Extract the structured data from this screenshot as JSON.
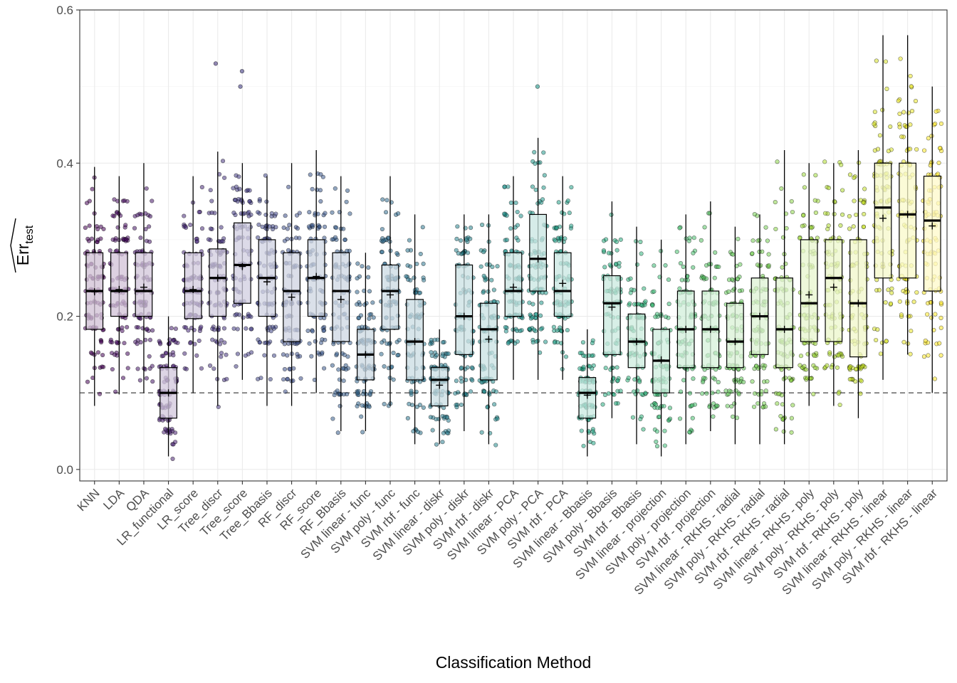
{
  "chart_data": {
    "type": "box",
    "xlabel": "Classification Method",
    "ylabel": "Err",
    "ylabel_sub": "test",
    "ylim": [
      -0.015,
      0.6
    ],
    "yticks": [
      "0.0",
      "0.2",
      "0.4",
      "0.6"
    ],
    "ytick_values": [
      0.0,
      0.2,
      0.4,
      0.6
    ],
    "reference_line": 0.1,
    "grid": true,
    "legend": "none",
    "categories": [
      "KNN",
      "LDA",
      "QDA",
      "LR_functional",
      "LR_score",
      "Tree_discr",
      "Tree_score",
      "Tree_Bbasis",
      "RF_discr",
      "RF_score",
      "RF_Bbasis",
      "SVM linear - func",
      "SVM poly - func",
      "SVM rbf - func",
      "SVM linear - diskr",
      "SVM poly - diskr",
      "SVM rbf - diskr",
      "SVM linear - PCA",
      "SVM poly - PCA",
      "SVM rbf - PCA",
      "SVM linear - Bbasis",
      "SVM poly - Bbasis",
      "SVM rbf - Bbasis",
      "SVM linear - projection",
      "SVM poly - projection",
      "SVM rbf - projection",
      "SVM linear - RKHS - radial",
      "SVM poly - RKHS - radial",
      "SVM rbf - RKHS - radial",
      "SVM linear - RKHS - poly",
      "SVM poly - RKHS - poly",
      "SVM rbf - RKHS - poly",
      "SVM linear - RKHS - linear",
      "SVM poly - RKHS - linear",
      "SVM rbf - RKHS - linear"
    ],
    "boxes": [
      {
        "lo": 0.083,
        "q1": 0.183,
        "med": 0.233,
        "q3": 0.283,
        "hi": 0.395,
        "mean": 0.232
      },
      {
        "lo": 0.098,
        "q1": 0.2,
        "med": 0.233,
        "q3": 0.283,
        "hi": 0.383,
        "mean": 0.235
      },
      {
        "lo": 0.1,
        "q1": 0.2,
        "med": 0.233,
        "q3": 0.283,
        "hi": 0.4,
        "mean": 0.238
      },
      {
        "lo": 0.017,
        "q1": 0.067,
        "med": 0.1,
        "q3": 0.133,
        "hi": 0.2,
        "mean": 0.1
      },
      {
        "lo": 0.1,
        "q1": 0.197,
        "med": 0.233,
        "q3": 0.283,
        "hi": 0.383,
        "mean": 0.235
      },
      {
        "lo": 0.083,
        "q1": 0.2,
        "med": 0.25,
        "q3": 0.288,
        "hi": 0.415,
        "mean": 0.25
      },
      {
        "lo": 0.117,
        "q1": 0.217,
        "med": 0.267,
        "q3": 0.322,
        "hi": 0.4,
        "mean": 0.265
      },
      {
        "lo": 0.083,
        "q1": 0.2,
        "med": 0.25,
        "q3": 0.3,
        "hi": 0.383,
        "mean": 0.245
      },
      {
        "lo": 0.083,
        "q1": 0.167,
        "med": 0.233,
        "q3": 0.283,
        "hi": 0.4,
        "mean": 0.225
      },
      {
        "lo": 0.1,
        "q1": 0.2,
        "med": 0.25,
        "q3": 0.3,
        "hi": 0.417,
        "mean": 0.252
      },
      {
        "lo": 0.05,
        "q1": 0.167,
        "med": 0.233,
        "q3": 0.283,
        "hi": 0.383,
        "mean": 0.222
      },
      {
        "lo": 0.05,
        "q1": 0.117,
        "med": 0.15,
        "q3": 0.183,
        "hi": 0.283,
        "mean": 0.15
      },
      {
        "lo": 0.083,
        "q1": 0.183,
        "med": 0.233,
        "q3": 0.267,
        "hi": 0.383,
        "mean": 0.228
      },
      {
        "lo": 0.033,
        "q1": 0.117,
        "med": 0.167,
        "q3": 0.222,
        "hi": 0.333,
        "mean": 0.167
      },
      {
        "lo": 0.033,
        "q1": 0.083,
        "med": 0.117,
        "q3": 0.133,
        "hi": 0.183,
        "mean": 0.11
      },
      {
        "lo": 0.05,
        "q1": 0.15,
        "med": 0.2,
        "q3": 0.267,
        "hi": 0.333,
        "mean": 0.2
      },
      {
        "lo": 0.033,
        "q1": 0.117,
        "med": 0.183,
        "q3": 0.217,
        "hi": 0.333,
        "mean": 0.17
      },
      {
        "lo": 0.117,
        "q1": 0.2,
        "med": 0.233,
        "q3": 0.283,
        "hi": 0.383,
        "mean": 0.238
      },
      {
        "lo": 0.117,
        "q1": 0.233,
        "med": 0.275,
        "q3": 0.333,
        "hi": 0.433,
        "mean": 0.275
      },
      {
        "lo": 0.117,
        "q1": 0.2,
        "med": 0.233,
        "q3": 0.283,
        "hi": 0.383,
        "mean": 0.243
      },
      {
        "lo": 0.017,
        "q1": 0.067,
        "med": 0.1,
        "q3": 0.12,
        "hi": 0.183,
        "mean": 0.097
      },
      {
        "lo": 0.067,
        "q1": 0.15,
        "med": 0.217,
        "q3": 0.253,
        "hi": 0.35,
        "mean": 0.212
      },
      {
        "lo": 0.033,
        "q1": 0.133,
        "med": 0.167,
        "q3": 0.203,
        "hi": 0.317,
        "mean": 0.167
      },
      {
        "lo": 0.017,
        "q1": 0.1,
        "med": 0.142,
        "q3": 0.183,
        "hi": 0.3,
        "mean": 0.143
      },
      {
        "lo": 0.033,
        "q1": 0.133,
        "med": 0.183,
        "q3": 0.233,
        "hi": 0.333,
        "mean": 0.183
      },
      {
        "lo": 0.05,
        "q1": 0.133,
        "med": 0.183,
        "q3": 0.233,
        "hi": 0.35,
        "mean": 0.183
      },
      {
        "lo": 0.033,
        "q1": 0.133,
        "med": 0.167,
        "q3": 0.217,
        "hi": 0.317,
        "mean": 0.167
      },
      {
        "lo": 0.033,
        "q1": 0.15,
        "med": 0.2,
        "q3": 0.25,
        "hi": 0.333,
        "mean": 0.2
      },
      {
        "lo": 0.033,
        "q1": 0.133,
        "med": 0.183,
        "q3": 0.25,
        "hi": 0.417,
        "mean": 0.183
      },
      {
        "lo": 0.083,
        "q1": 0.167,
        "med": 0.217,
        "q3": 0.3,
        "hi": 0.4,
        "mean": 0.228
      },
      {
        "lo": 0.083,
        "q1": 0.167,
        "med": 0.25,
        "q3": 0.3,
        "hi": 0.4,
        "mean": 0.238
      },
      {
        "lo": 0.067,
        "q1": 0.147,
        "med": 0.217,
        "q3": 0.3,
        "hi": 0.417,
        "mean": 0.217
      },
      {
        "lo": 0.117,
        "q1": 0.25,
        "med": 0.342,
        "q3": 0.4,
        "hi": 0.567,
        "mean": 0.328
      },
      {
        "lo": 0.15,
        "q1": 0.25,
        "med": 0.333,
        "q3": 0.4,
        "hi": 0.567,
        "mean": 0.333
      },
      {
        "lo": 0.1,
        "q1": 0.233,
        "med": 0.325,
        "q3": 0.383,
        "hi": 0.5,
        "mean": 0.318
      }
    ],
    "outliers": [
      [
        5,
        0.53
      ],
      [
        6,
        0.52
      ],
      [
        6,
        0.5
      ],
      [
        18,
        0.5
      ]
    ],
    "colors": [
      "#440154",
      "#482475",
      "#414487",
      "#355f8d",
      "#2a788e",
      "#21918c",
      "#22a884",
      "#44bf70",
      "#7ad151",
      "#bddf26",
      "#fde725"
    ]
  }
}
